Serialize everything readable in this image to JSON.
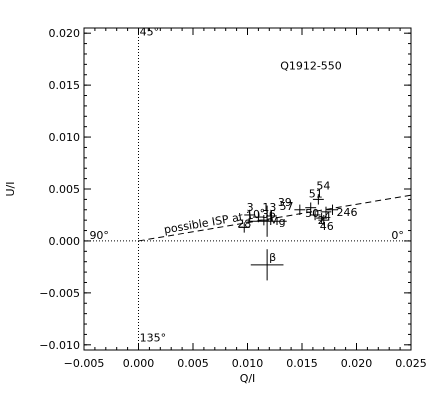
{
  "chart_data": {
    "type": "scatter",
    "title": "Q1912-550",
    "xlabel": "Q/I",
    "ylabel": "U/I",
    "xlim": [
      -0.005,
      0.025
    ],
    "ylim": [
      -0.0105,
      0.0205
    ],
    "grid": false,
    "x_ticks": [
      -0.005,
      0.0,
      0.005,
      0.01,
      0.015,
      0.02,
      0.025
    ],
    "x_tick_labels": [
      "−0.005",
      "0.000",
      "0.005",
      "0.010",
      "0.015",
      "0.020",
      "0.025"
    ],
    "y_ticks": [
      -0.01,
      -0.005,
      0.0,
      0.005,
      0.01,
      0.015,
      0.02
    ],
    "y_tick_labels": [
      "−0.010",
      "−0.005",
      "0.000",
      "0.005",
      "0.010",
      "0.015",
      "0.020"
    ],
    "angle_labels": [
      {
        "text": "45°",
        "x": 0.0001,
        "y": 0.0198
      },
      {
        "text": "90°",
        "x": -0.0045,
        "y": 0.0002
      },
      {
        "text": "0°",
        "x": 0.0232,
        "y": 0.0002
      },
      {
        "text": "135°",
        "x": 0.0001,
        "y": -0.0097
      }
    ],
    "isp_line": {
      "label": "possible ISP at  10°",
      "angle_deg": 10
    },
    "points": [
      {
        "label": "28",
        "x": 0.0097,
        "y": 0.0013,
        "xerr": 0.0005,
        "yerr": 0.0005
      },
      {
        "label": "3",
        "x": 0.0102,
        "y": 0.0025,
        "xerr": 0.0005,
        "yerr": 0.0005
      },
      {
        "label": "13",
        "x": 0.011,
        "y": 0.0023,
        "xerr": 0.0005,
        "yerr": 0.0005
      },
      {
        "label": "36",
        "x": 0.0115,
        "y": 0.002,
        "xerr": 0.0005,
        "yerr": 0.0005
      },
      {
        "label": "57",
        "x": 0.0122,
        "y": 0.0024,
        "xerr": 0.0005,
        "yerr": 0.0005
      },
      {
        "label": "Mg",
        "x": 0.0118,
        "y": 0.0019,
        "xerr": 0.0018,
        "yerr": 0.0015
      },
      {
        "label": "39",
        "x": 0.0148,
        "y": 0.003,
        "xerr": 0.0005,
        "yerr": 0.0005
      },
      {
        "label": "51",
        "x": 0.0158,
        "y": 0.0032,
        "xerr": 0.0005,
        "yerr": 0.0005
      },
      {
        "label": "54",
        "x": 0.0165,
        "y": 0.004,
        "xerr": 0.0005,
        "yerr": 0.0005
      },
      {
        "label": "50",
        "x": 0.0162,
        "y": 0.0025,
        "xerr": 0.0005,
        "yerr": 0.0005
      },
      {
        "label": "2",
        "x": 0.0168,
        "y": 0.0022,
        "xerr": 0.0005,
        "yerr": 0.0005
      },
      {
        "label": "4",
        "x": 0.0172,
        "y": 0.0028,
        "xerr": 0.0005,
        "yerr": 0.0005
      },
      {
        "label": "46",
        "x": 0.017,
        "y": 0.002,
        "xerr": 0.0005,
        "yerr": 0.0005
      },
      {
        "label": "246",
        "x": 0.0178,
        "y": 0.003,
        "xerr": 0.0005,
        "yerr": 0.0005
      },
      {
        "label": "β",
        "x": 0.0118,
        "y": -0.0023,
        "xerr": 0.0015,
        "yerr": 0.0015
      }
    ]
  }
}
